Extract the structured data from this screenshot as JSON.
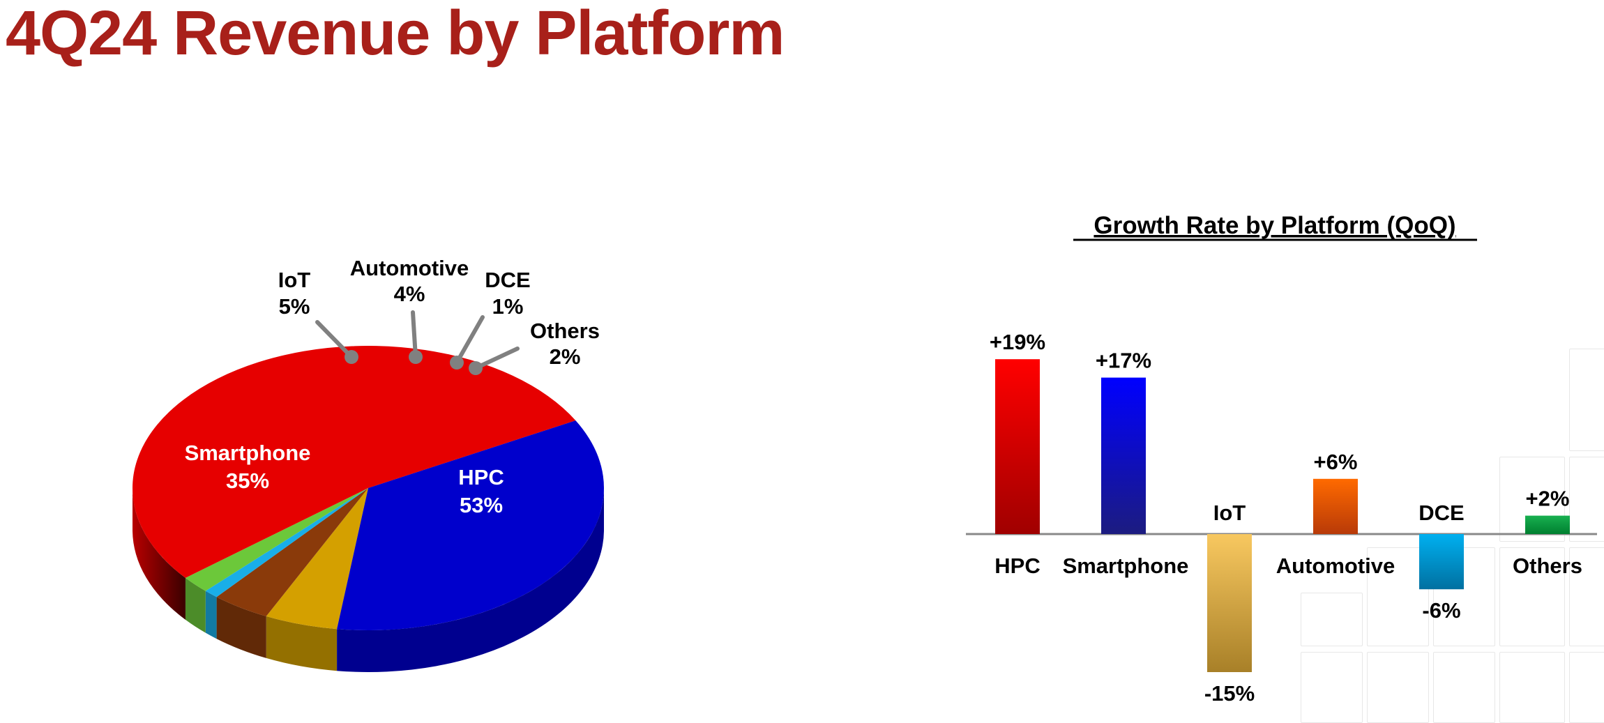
{
  "page": {
    "title": "4Q24 Revenue by Platform"
  },
  "chart_data": [
    {
      "type": "pie",
      "style": "3d",
      "slices": [
        {
          "label": "HPC",
          "value_label": "53%",
          "value": 53,
          "color": "#e60000"
        },
        {
          "label": "Smartphone",
          "value_label": "35%",
          "value": 35,
          "color": "#0000cc"
        },
        {
          "label": "IoT",
          "value_label": "5%",
          "value": 5,
          "color": "#d4a000"
        },
        {
          "label": "Automotive",
          "value_label": "4%",
          "value": 4,
          "color": "#8a3a0a"
        },
        {
          "label": "DCE",
          "value_label": "1%",
          "value": 1,
          "color": "#19aee8"
        },
        {
          "label": "Others",
          "value_label": "2%",
          "value": 2,
          "color": "#6cc83a"
        }
      ]
    },
    {
      "type": "bar",
      "title": "Growth Rate by Platform (QoQ)",
      "categories": [
        "HPC",
        "Smartphone",
        "IoT",
        "Automotive",
        "DCE",
        "Others"
      ],
      "values": [
        19,
        17,
        -15,
        6,
        -6,
        2
      ],
      "value_labels": [
        "+19%",
        "+17%",
        "-15%",
        "+6%",
        "-6%",
        "+2%"
      ],
      "unit": "%",
      "colors": [
        [
          "#ff0000",
          "#a00000"
        ],
        [
          "#0000ff",
          "#1c1c80"
        ],
        [
          "#f8c860",
          "#a88028"
        ],
        [
          "#ff6a00",
          "#b83a08"
        ],
        [
          "#00b0f0",
          "#0070a0"
        ],
        [
          "#18b050",
          "#008030"
        ]
      ]
    }
  ]
}
